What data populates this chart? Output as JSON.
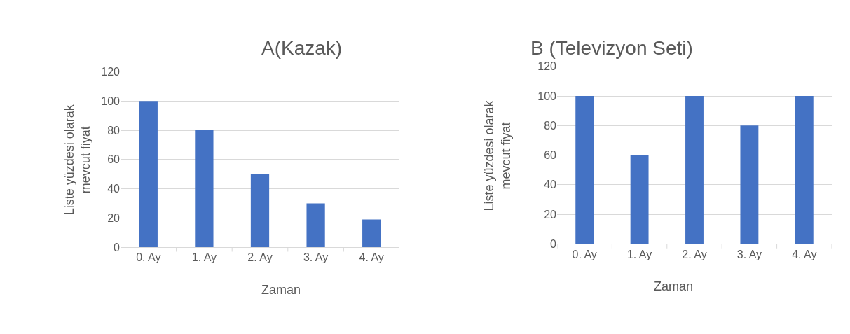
{
  "chart_data": [
    {
      "type": "bar",
      "title": "A(Kazak)",
      "xlabel": "Zaman",
      "ylabel": "Liste yüzdesi olarak\nmevcut fiyat",
      "categories": [
        "0. Ay",
        "1. Ay",
        "2. Ay",
        "3. Ay",
        "4. Ay"
      ],
      "values": [
        100,
        80,
        50,
        30,
        19
      ],
      "color": "#4472c4",
      "ylim": [
        0,
        120
      ],
      "yticks": [
        0,
        20,
        40,
        60,
        80,
        100,
        120
      ],
      "grid": "y"
    },
    {
      "type": "bar",
      "title": "B (Televizyon Seti)",
      "xlabel": "Zaman",
      "ylabel": "Liste yüzdesi olarak\nmevcut fiyat",
      "categories": [
        "0. Ay",
        "1. Ay",
        "2. Ay",
        "3. Ay",
        "4. Ay"
      ],
      "values": [
        100,
        60,
        100,
        80,
        100
      ],
      "color": "#4472c4",
      "ylim": [
        0,
        120
      ],
      "yticks": [
        0,
        20,
        40,
        60,
        80,
        100,
        120
      ],
      "grid": "y"
    }
  ]
}
